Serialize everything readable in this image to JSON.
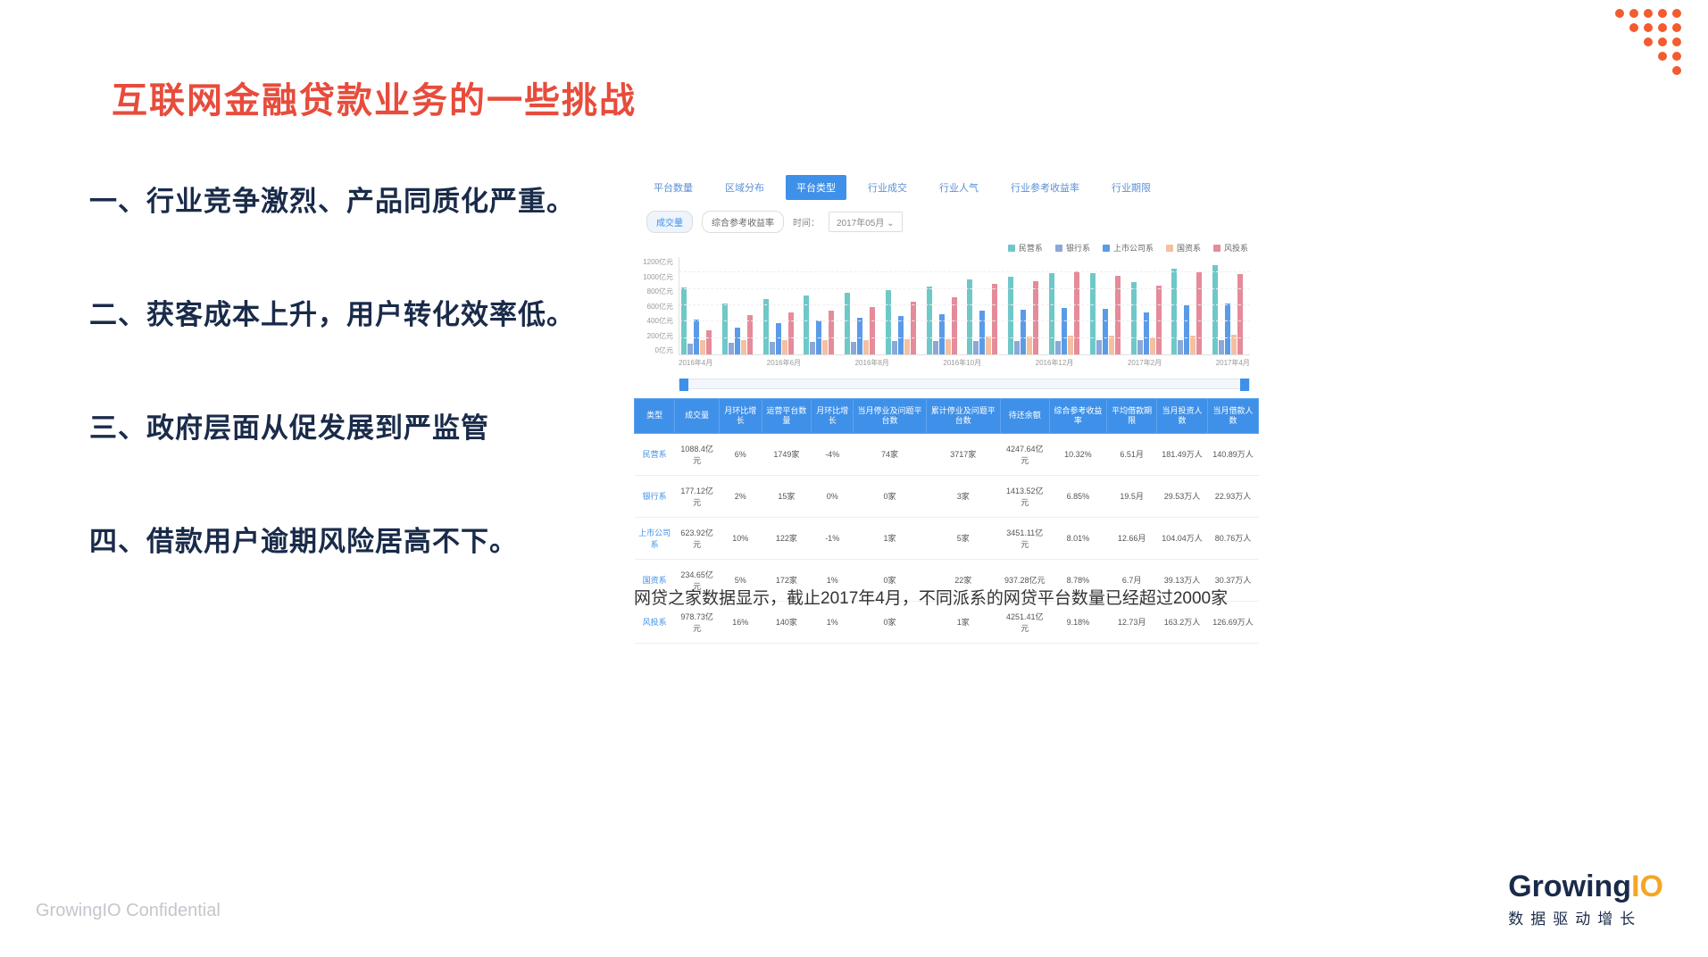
{
  "title": "互联网金融贷款业务的一些挑战",
  "bullets": [
    "一、行业竞争激烈、产品同质化严重。",
    "二、获客成本上升，用户转化效率低。",
    "三、政府层面从促发展到严监管",
    "四、借款用户逾期风险居高不下。"
  ],
  "tabs": [
    "平台数量",
    "区域分布",
    "平台类型",
    "行业成交",
    "行业人气",
    "行业参考收益率",
    "行业期限"
  ],
  "activeTab": 2,
  "subTabs": {
    "volume": "成交量",
    "rate": "综合参考收益率"
  },
  "timeLabel": "时间：",
  "period": "2017年05月",
  "legend": [
    {
      "label": "民营系",
      "color": "#6fc8c8"
    },
    {
      "label": "银行系",
      "color": "#8aa8d8"
    },
    {
      "label": "上市公司系",
      "color": "#5a9be8"
    },
    {
      "label": "国资系",
      "color": "#f5bfa0"
    },
    {
      "label": "风投系",
      "color": "#e58b9a"
    }
  ],
  "chart": {
    "ylim": 1200,
    "ylabels": [
      "1200亿元",
      "1000亿元",
      "800亿元",
      "600亿元",
      "400亿元",
      "200亿元",
      "0亿元"
    ],
    "xlabels": [
      "2016年4月",
      "2016年6月",
      "2016年8月",
      "2016年10月",
      "2016年12月",
      "2017年2月",
      "2017年4月"
    ],
    "months": [
      [
        820,
        130,
        430,
        170,
        300
      ],
      [
        620,
        140,
        330,
        180,
        480
      ],
      [
        680,
        150,
        380,
        170,
        510
      ],
      [
        720,
        150,
        420,
        180,
        540
      ],
      [
        750,
        150,
        450,
        180,
        580
      ],
      [
        790,
        160,
        470,
        190,
        640
      ],
      [
        830,
        160,
        490,
        190,
        700
      ],
      [
        920,
        160,
        540,
        220,
        860
      ],
      [
        950,
        160,
        550,
        220,
        900
      ],
      [
        990,
        160,
        570,
        230,
        1020
      ],
      [
        990,
        170,
        560,
        230,
        960
      ],
      [
        880,
        170,
        510,
        210,
        840
      ],
      [
        1050,
        180,
        600,
        230,
        1000
      ],
      [
        1088,
        177,
        624,
        235,
        979
      ]
    ],
    "background_color": "#ffffff",
    "grid_color": "#eeeeee"
  },
  "table": {
    "headers": [
      "类型",
      "成交量",
      "月环比增长",
      "运营平台数量",
      "月环比增长",
      "当月停业及问题平台数",
      "累计停业及问题平台数",
      "待还余额",
      "综合参考收益率",
      "平均借款期限",
      "当月投资人数",
      "当月借款人数"
    ],
    "rows": [
      [
        "民营系",
        "1088.4亿元",
        "6%",
        "1749家",
        "-4%",
        "74家",
        "3717家",
        "4247.64亿元",
        "10.32%",
        "6.51月",
        "181.49万人",
        "140.89万人"
      ],
      [
        "银行系",
        "177.12亿元",
        "2%",
        "15家",
        "0%",
        "0家",
        "3家",
        "1413.52亿元",
        "6.85%",
        "19.5月",
        "29.53万人",
        "22.93万人"
      ],
      [
        "上市公司系",
        "623.92亿元",
        "10%",
        "122家",
        "-1%",
        "1家",
        "5家",
        "3451.11亿元",
        "8.01%",
        "12.66月",
        "104.04万人",
        "80.76万人"
      ],
      [
        "国资系",
        "234.65亿元",
        "5%",
        "172家",
        "1%",
        "0家",
        "22家",
        "937.28亿元",
        "8.78%",
        "6.7月",
        "39.13万人",
        "30.37万人"
      ],
      [
        "风投系",
        "978.73亿元",
        "16%",
        "140家",
        "1%",
        "0家",
        "1家",
        "4251.41亿元",
        "9.18%",
        "12.73月",
        "163.2万人",
        "126.69万人"
      ]
    ]
  },
  "caption": "网贷之家数据显示，截止2017年4月，不同派系的网贷平台数量已经超过2000家",
  "footer": "GrowingIO Confidential",
  "logo": {
    "main": "Growing",
    "accent": "IO",
    "sub": "数据驱动增长"
  },
  "dots": {
    "color": "#f25c2e"
  }
}
